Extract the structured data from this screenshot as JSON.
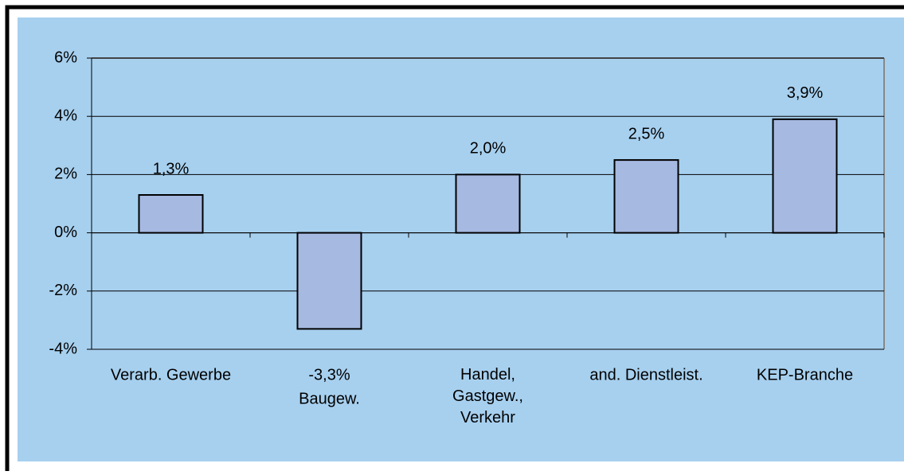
{
  "chart_data": {
    "type": "bar",
    "categories": [
      "Verarb. Gewerbe",
      "Baugew.",
      [
        "Handel,",
        "Gastgew.,",
        "Verkehr"
      ],
      "and. Dienstleist.",
      "KEP-Branche"
    ],
    "values": [
      1.3,
      -3.3,
      2.0,
      2.5,
      3.9
    ],
    "value_labels": [
      "1,3%",
      "-3,3%",
      "2,0%",
      "2,5%",
      "3,9%"
    ],
    "color": "#a6b9e1",
    "ylim": [
      -4,
      6
    ],
    "yticks": [
      {
        "value": -4,
        "label": "-4%"
      },
      {
        "value": -2,
        "label": "-2%"
      },
      {
        "value": 0,
        "label": "0%"
      },
      {
        "value": 2,
        "label": "2%"
      },
      {
        "value": 4,
        "label": "4%"
      },
      {
        "value": 6,
        "label": "6%"
      }
    ],
    "grid": true
  }
}
